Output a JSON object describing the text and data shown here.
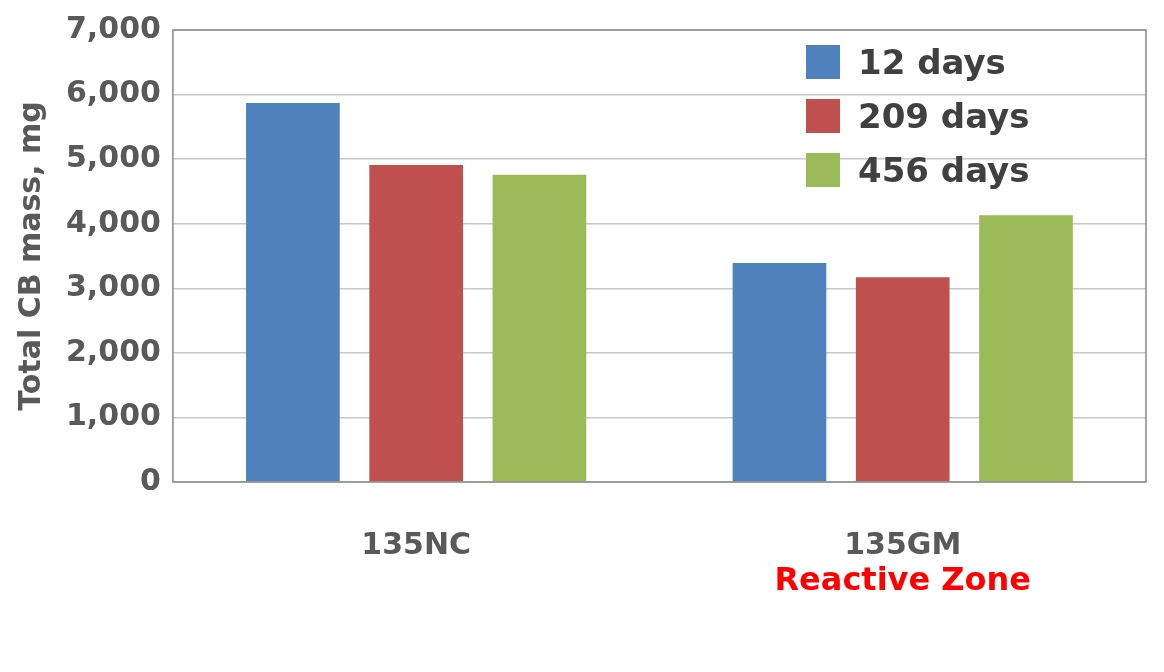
{
  "chart_data": {
    "type": "bar",
    "ylabel": "Total CB mass, mg",
    "categories": [
      "135NC",
      "135GM"
    ],
    "series": [
      {
        "name": "12 days",
        "color": "#4f81bd",
        "values": [
          5870,
          3390
        ]
      },
      {
        "name": "209 days",
        "color": "#c0504d",
        "values": [
          4910,
          3170
        ]
      },
      {
        "name": "456 days",
        "color": "#9bbb59",
        "values": [
          4760,
          4130
        ]
      }
    ],
    "ylim": [
      0,
      7000
    ],
    "yticks": [
      {
        "value": 0,
        "label": "0"
      },
      {
        "value": 1000,
        "label": "1,000"
      },
      {
        "value": 2000,
        "label": "2,000"
      },
      {
        "value": 3000,
        "label": "3,000"
      },
      {
        "value": 4000,
        "label": "4,000"
      },
      {
        "value": 5000,
        "label": "5,000"
      },
      {
        "value": 6000,
        "label": "6,000"
      },
      {
        "value": 7000,
        "label": "7,000"
      }
    ],
    "grid": "y",
    "legend": "top right",
    "annotations": [
      "Reactive Zone"
    ]
  }
}
